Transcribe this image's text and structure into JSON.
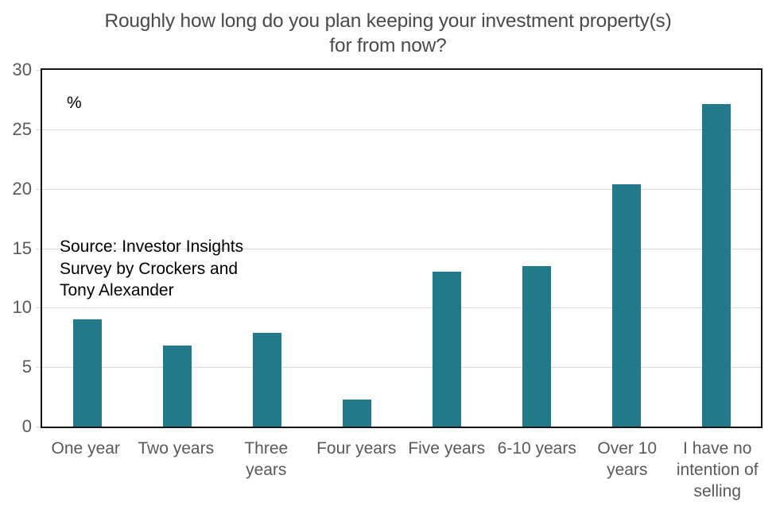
{
  "header": {
    "title_lines": [
      "Roughly how long do you plan keeping your investment property(s)",
      "for from now?"
    ]
  },
  "chart_data": {
    "type": "bar",
    "title": "Roughly how long do you plan keeping your investment property(s) for from now?",
    "unit_label": "%",
    "source_note": "Source: Investor Insights\nSurvey by Crockers and\nTony Alexander",
    "categories": [
      "One year",
      "Two years",
      "Three years",
      "Four years",
      "Five years",
      "6-10 years",
      "Over 10 years",
      "I have no intention of selling"
    ],
    "category_display_lines": [
      [
        "One year"
      ],
      [
        "Two years"
      ],
      [
        "Three",
        "years"
      ],
      [
        "Four years"
      ],
      [
        "Five years"
      ],
      [
        "6-10 years"
      ],
      [
        "Over 10",
        "years"
      ],
      [
        "I have no",
        "intention of",
        "selling"
      ]
    ],
    "values": [
      9.0,
      6.8,
      7.9,
      2.3,
      13.0,
      13.5,
      20.4,
      27.1
    ],
    "xlabel": "",
    "ylabel": "%",
    "ylim": [
      0,
      30
    ],
    "yticks": [
      0,
      5,
      10,
      15,
      20,
      25,
      30
    ],
    "grid": true,
    "legend": false,
    "colors": {
      "bar": "#21798a",
      "title": "#4a4a4a",
      "axis_labels": "#595959",
      "gridline": "#d9d9d9",
      "plot_border": "#141414",
      "annotation": "#000000"
    }
  }
}
